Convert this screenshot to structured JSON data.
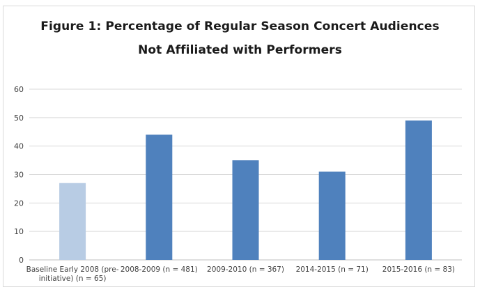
{
  "chart_data": {
    "type": "bar",
    "title_lines": [
      "Figure 1: Percentage of Regular Season Concert Audiences",
      "Not Affiliated with Performers"
    ],
    "xlabel": "",
    "ylabel": "",
    "ylim": [
      0,
      60
    ],
    "yticks": [
      0,
      10,
      20,
      30,
      40,
      50,
      60
    ],
    "grid": true,
    "legend": "none",
    "categories": [
      [
        "Baseline Early 2008 (pre-",
        "initiative) (n = 65)"
      ],
      [
        "2008-2009 (n = 481)"
      ],
      [
        "2009-2010 (n = 367)"
      ],
      [
        "2014-2015 (n = 71)"
      ],
      [
        "2015-2016 (n = 83)"
      ]
    ],
    "values": [
      27,
      44,
      35,
      31,
      49
    ],
    "bar_colors": [
      "#b8cce4",
      "#4f81bd",
      "#4f81bd",
      "#4f81bd",
      "#4f81bd"
    ],
    "grid_color": "#d9d9d9",
    "axis_color": "#bfbfbf"
  }
}
